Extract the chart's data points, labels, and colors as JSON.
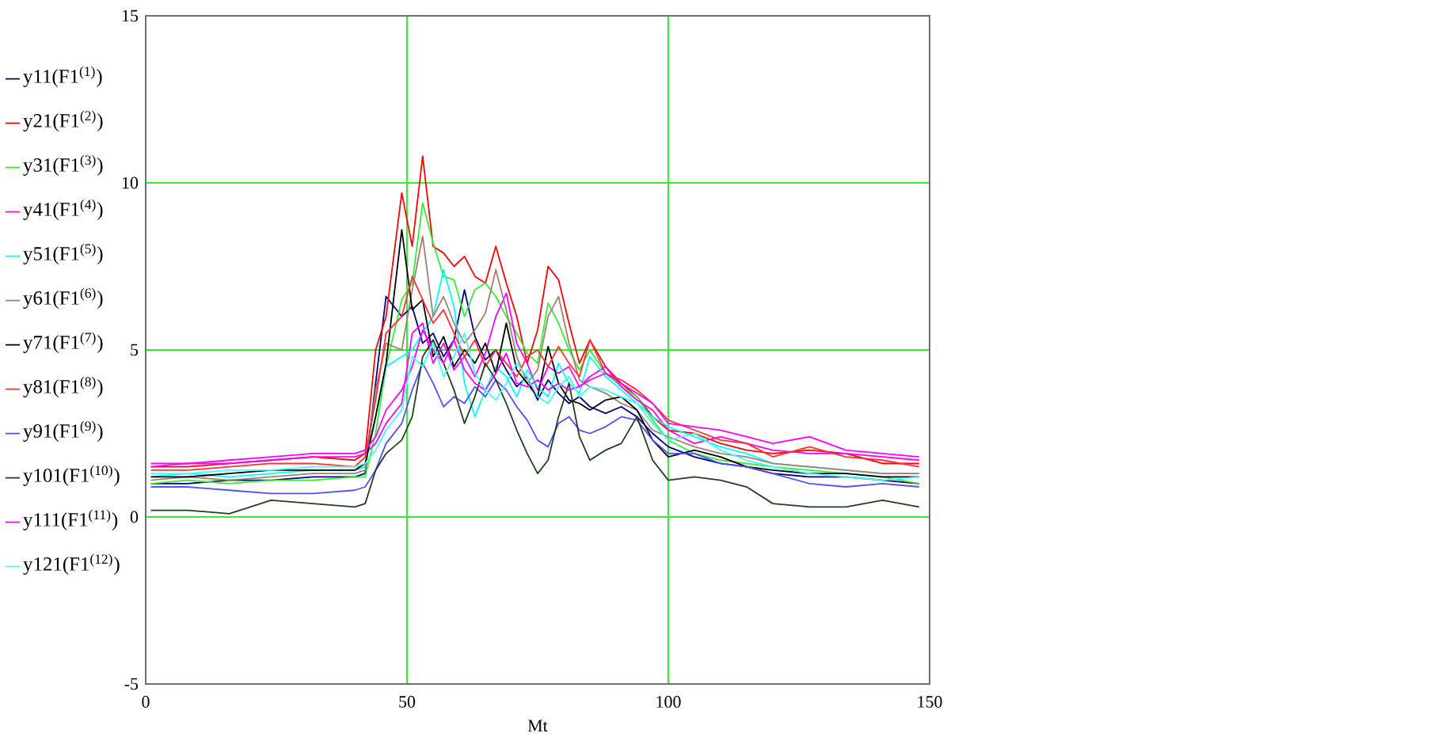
{
  "chart_data": {
    "type": "line",
    "xlabel": "Mt",
    "x": [
      1,
      8,
      16,
      24,
      32,
      40,
      42,
      44,
      46,
      49,
      51,
      53,
      55,
      57,
      59,
      61,
      63,
      65,
      67,
      69,
      71,
      73,
      75,
      77,
      79,
      81,
      83,
      85,
      88,
      91,
      94,
      97,
      100,
      105,
      110,
      115,
      120,
      127,
      134,
      141,
      148
    ],
    "xlim": [
      0,
      150
    ],
    "xticks": [
      0,
      50,
      100,
      150
    ],
    "ylim": [
      -5,
      15
    ],
    "yticks": [
      -5,
      0,
      5,
      10,
      15
    ],
    "grid": true,
    "legend": "left",
    "series": [
      {
        "name": "y11(F1$^{(1)}$)",
        "color": "#000080",
        "values": [
          1.0,
          1.0,
          1.1,
          1.1,
          1.2,
          1.2,
          1.3,
          4.0,
          6.6,
          6.0,
          6.3,
          5.2,
          5.5,
          4.8,
          5.3,
          6.8,
          5.4,
          4.7,
          5.0,
          4.4,
          3.9,
          4.2,
          3.5,
          4.1,
          3.7,
          3.4,
          3.6,
          3.3,
          3.1,
          3.3,
          3.0,
          2.5,
          2.1,
          1.8,
          1.6,
          1.5,
          1.3,
          1.2,
          1.2,
          1.1,
          1.0
        ]
      },
      {
        "name": "y21(F1$^{(2)}$)",
        "color": "#ff0000",
        "values": [
          1.5,
          1.5,
          1.6,
          1.7,
          1.8,
          1.7,
          1.9,
          5.0,
          6.0,
          9.7,
          8.1,
          10.8,
          8.1,
          7.9,
          7.5,
          7.8,
          7.2,
          7.0,
          8.1,
          7.0,
          6.0,
          4.6,
          5.6,
          7.5,
          7.1,
          5.8,
          4.6,
          5.3,
          4.5,
          4.0,
          3.6,
          3.0,
          2.6,
          2.5,
          2.2,
          2.0,
          1.9,
          2.0,
          1.9,
          1.6,
          1.6
        ]
      },
      {
        "name": "y31(F1$^{(3)}$)",
        "color": "#33ee33",
        "values": [
          1.0,
          1.1,
          1.0,
          1.1,
          1.1,
          1.2,
          1.2,
          2.5,
          4.5,
          6.5,
          7.0,
          9.4,
          8.2,
          7.2,
          7.1,
          6.0,
          6.8,
          7.0,
          6.6,
          6.0,
          5.5,
          4.9,
          4.6,
          6.4,
          5.8,
          5.0,
          4.4,
          5.0,
          4.3,
          3.9,
          3.6,
          2.9,
          2.3,
          1.9,
          1.7,
          1.6,
          1.5,
          1.4,
          1.3,
          1.2,
          1.0
        ]
      },
      {
        "name": "y41(F1$^{(4)}$)",
        "color": "#ff00ff",
        "values": [
          1.5,
          1.6,
          1.6,
          1.7,
          1.8,
          1.8,
          1.9,
          2.2,
          2.8,
          3.4,
          5.5,
          5.8,
          4.6,
          5.2,
          4.4,
          4.8,
          4.2,
          4.9,
          6.0,
          6.7,
          5.2,
          4.6,
          3.8,
          4.5,
          4.3,
          4.5,
          3.9,
          4.2,
          4.5,
          3.9,
          3.5,
          3.2,
          2.6,
          2.2,
          2.4,
          2.2,
          2.0,
          1.9,
          1.9,
          1.8,
          1.7
        ]
      },
      {
        "name": "y51(F1$^{(5)}$)",
        "color": "#00ffff",
        "values": [
          1.2,
          1.3,
          1.2,
          1.3,
          1.4,
          1.4,
          1.5,
          3.0,
          4.5,
          4.8,
          5.0,
          5.5,
          6.0,
          7.4,
          6.3,
          4.0,
          3.0,
          3.8,
          4.5,
          4.2,
          3.6,
          4.4,
          3.9,
          3.6,
          4.6,
          4.0,
          3.7,
          4.8,
          4.2,
          3.8,
          3.4,
          3.0,
          2.7,
          2.4,
          2.1,
          1.9,
          1.6,
          1.5,
          1.4,
          1.3,
          1.3
        ]
      },
      {
        "name": "y61(F1$^{(6)}$)",
        "color": "#a08070",
        "values": [
          1.1,
          1.2,
          1.1,
          1.2,
          1.3,
          1.3,
          1.4,
          3.8,
          5.2,
          5.0,
          6.8,
          8.4,
          6.0,
          6.6,
          5.8,
          5.2,
          5.6,
          6.1,
          7.4,
          6.2,
          4.8,
          4.0,
          4.4,
          6.0,
          6.6,
          5.2,
          4.1,
          3.9,
          3.7,
          3.4,
          3.2,
          2.6,
          2.4,
          2.1,
          1.9,
          1.8,
          1.6,
          1.5,
          1.4,
          1.3,
          1.3
        ]
      },
      {
        "name": "y71(F1$^{(7)}$)",
        "color": "#000000",
        "values": [
          1.2,
          1.2,
          1.3,
          1.4,
          1.4,
          1.4,
          1.6,
          3.0,
          4.6,
          8.6,
          6.2,
          6.5,
          4.8,
          5.4,
          4.5,
          5.0,
          4.6,
          5.2,
          4.3,
          5.8,
          4.4,
          4.0,
          3.6,
          5.1,
          4.0,
          3.5,
          3.4,
          3.2,
          3.5,
          3.6,
          3.2,
          2.3,
          1.8,
          2.0,
          1.8,
          1.5,
          1.4,
          1.3,
          1.3,
          1.2,
          1.2
        ]
      },
      {
        "name": "y81(F1$^{(8)}$)",
        "color": "#ff3030",
        "values": [
          1.4,
          1.4,
          1.5,
          1.6,
          1.6,
          1.5,
          1.8,
          3.5,
          5.5,
          6.0,
          7.2,
          6.5,
          5.8,
          6.2,
          5.5,
          4.8,
          5.3,
          4.5,
          5.0,
          4.6,
          4.2,
          4.8,
          5.0,
          4.5,
          5.1,
          4.6,
          4.2,
          5.3,
          4.3,
          4.1,
          3.8,
          3.4,
          2.9,
          2.6,
          2.3,
          2.2,
          1.8,
          2.1,
          1.8,
          1.7,
          1.5
        ]
      },
      {
        "name": "y91(F1$^{(9)}$)",
        "color": "#5050ff",
        "values": [
          0.9,
          0.9,
          0.8,
          0.7,
          0.7,
          0.8,
          0.9,
          1.4,
          2.2,
          2.8,
          3.8,
          4.6,
          4.0,
          3.3,
          3.6,
          3.4,
          3.9,
          3.6,
          4.1,
          3.8,
          3.3,
          2.9,
          2.3,
          2.1,
          2.8,
          3.0,
          2.6,
          2.5,
          2.7,
          3.0,
          2.9,
          2.3,
          1.9,
          1.9,
          1.6,
          1.5,
          1.3,
          1.0,
          0.9,
          1.0,
          0.9
        ]
      },
      {
        "name": "y101(F1$^{(10)}$)",
        "color": "#204020",
        "values": [
          0.2,
          0.2,
          0.1,
          0.5,
          0.4,
          0.3,
          0.4,
          1.4,
          1.9,
          2.3,
          3.0,
          4.8,
          5.3,
          4.6,
          3.8,
          2.8,
          3.6,
          4.6,
          4.1,
          3.4,
          2.6,
          1.9,
          1.3,
          1.7,
          3.0,
          4.0,
          2.4,
          1.7,
          2.0,
          2.2,
          3.0,
          1.7,
          1.1,
          1.2,
          1.1,
          0.9,
          0.4,
          0.3,
          0.3,
          0.5,
          0.3
        ]
      },
      {
        "name": "y111(F1$^{(11)}$)",
        "color": "#ff00ff",
        "values": [
          1.6,
          1.6,
          1.7,
          1.8,
          1.9,
          1.9,
          2.0,
          2.4,
          3.2,
          3.8,
          4.5,
          5.6,
          5.0,
          4.6,
          5.3,
          4.4,
          4.0,
          3.8,
          4.3,
          4.9,
          4.0,
          3.9,
          4.1,
          3.8,
          4.0,
          3.8,
          3.9,
          4.1,
          4.3,
          4.0,
          3.7,
          3.4,
          2.8,
          2.7,
          2.6,
          2.4,
          2.2,
          2.4,
          2.0,
          1.9,
          1.8
        ]
      },
      {
        "name": "y121(F1$^{(12)}$)",
        "color": "#40ffff",
        "values": [
          1.3,
          1.3,
          1.4,
          1.4,
          1.5,
          1.5,
          1.6,
          2.0,
          2.6,
          3.2,
          4.8,
          4.5,
          5.2,
          4.2,
          4.8,
          5.5,
          4.3,
          3.8,
          3.5,
          4.0,
          4.6,
          4.2,
          3.6,
          3.4,
          3.9,
          4.2,
          3.6,
          3.9,
          3.8,
          3.6,
          3.4,
          2.8,
          2.3,
          2.5,
          2.0,
          1.7,
          1.5,
          1.3,
          1.2,
          1.1,
          1.2
        ]
      }
    ]
  }
}
